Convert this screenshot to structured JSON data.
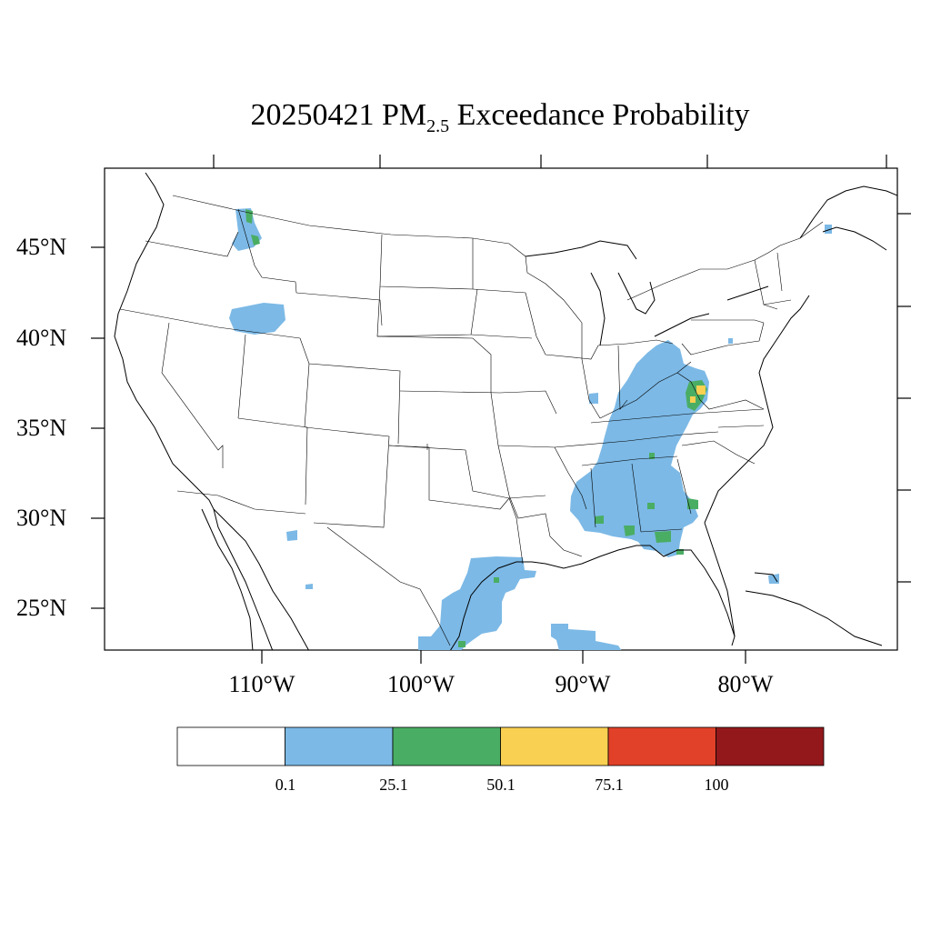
{
  "title": {
    "date": "20250421",
    "pm": "PM",
    "sub": "2.5",
    "rest": "Exceedance Probability"
  },
  "lat_labels": [
    "45°N",
    "40°N",
    "35°N",
    "30°N",
    "25°N"
  ],
  "lon_labels": [
    "110°W",
    "100°W",
    "90°W",
    "80°W"
  ],
  "colorbar": {
    "colors": [
      "#ffffff",
      "#7cb9e6",
      "#4aad64",
      "#f9d052",
      "#e14129",
      "#93181b"
    ],
    "labels": [
      "0.1",
      "25.1",
      "50.1",
      "75.1",
      "100"
    ]
  },
  "colors": {
    "low": "#7cb9e6",
    "mid": "#4aad64",
    "high": "#f9d052"
  }
}
